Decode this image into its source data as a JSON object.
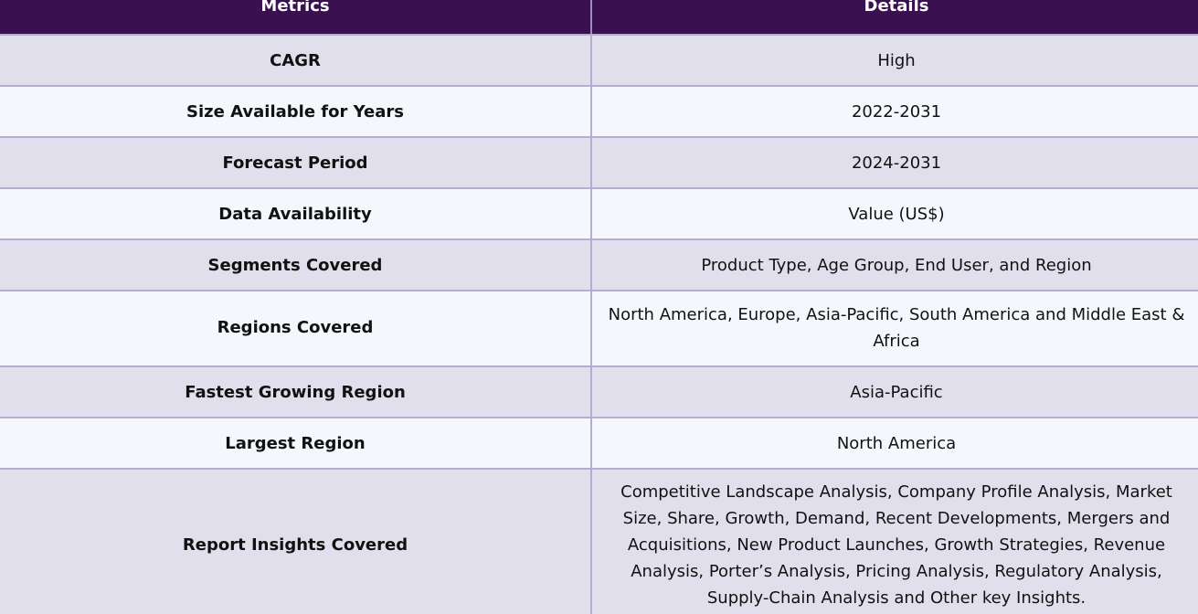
{
  "table": {
    "headers": [
      "Metrics",
      "Details"
    ],
    "rows": [
      {
        "metric": "CAGR",
        "detail": "High"
      },
      {
        "metric": "Size Available for Years",
        "detail": "2022-2031"
      },
      {
        "metric": "Forecast Period",
        "detail": "2024-2031"
      },
      {
        "metric": "Data Availability",
        "detail": "Value (US$)"
      },
      {
        "metric": "Segments Covered",
        "detail": "Product Type, Age Group, End User, and Region"
      },
      {
        "metric": "Regions Covered",
        "detail": "North America, Europe, Asia-Pacific, South America and Middle East & Africa"
      },
      {
        "metric": "Fastest Growing Region",
        "detail": "Asia-Pacific"
      },
      {
        "metric": "Largest Region",
        "detail": "North America"
      },
      {
        "metric": "Report Insights Covered",
        "detail": "Competitive Landscape Analysis, Company Profile Analysis, Market Size, Share, Growth, Demand, Recent Developments, Mergers and Acquisitions, New Product Launches, Growth Strategies, Revenue Analysis, Porter’s Analysis, Pricing Analysis, Regulatory Analysis, Supply-Chain Analysis and Other key Insights."
      }
    ]
  },
  "colors": {
    "header_bg": "#3a1150",
    "row_odd": "#e2dfec",
    "row_even": "#f4f8fd",
    "border": "#b4adcf"
  }
}
